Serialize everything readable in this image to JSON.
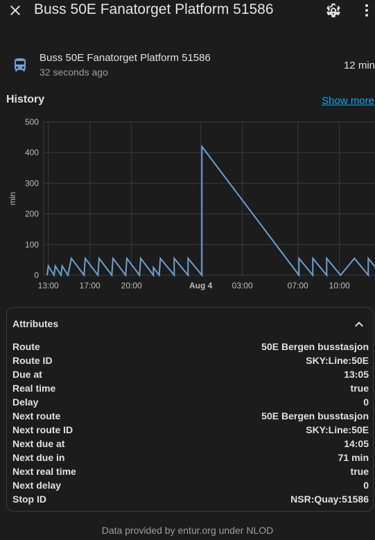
{
  "header": {
    "title": "Buss 50E Fanatorget Platform 51586"
  },
  "entity": {
    "name": "Buss 50E Fanatorget Platform 51586",
    "last_changed": "32 seconds ago",
    "state": "12 min"
  },
  "history": {
    "title": "History",
    "show_more": "Show more"
  },
  "chart_data": {
    "type": "line",
    "title": "",
    "xlabel": "",
    "ylabel": "min",
    "ylim": [
      0,
      500
    ],
    "y_ticks": [
      "0",
      "100",
      "200",
      "300",
      "400",
      "500"
    ],
    "x_ticks": [
      "13:00",
      "17:00",
      "20:00",
      "Aug 4",
      "03:00",
      "07:00",
      "10:00"
    ],
    "grid": true,
    "line_color": "#6e9fd0",
    "series": [
      {
        "points": [
          [
            "12:55",
            0
          ],
          [
            "13:00",
            30
          ],
          [
            "13:25",
            0
          ],
          [
            "13:30",
            30
          ],
          [
            "13:55",
            0
          ],
          [
            "14:00",
            30
          ],
          [
            "14:25",
            0
          ],
          [
            "14:40",
            55
          ],
          [
            "15:35",
            0
          ],
          [
            "15:40",
            55
          ],
          [
            "16:35",
            0
          ],
          [
            "16:40",
            55
          ],
          [
            "17:35",
            0
          ],
          [
            "17:40",
            55
          ],
          [
            "18:35",
            0
          ],
          [
            "18:40",
            55
          ],
          [
            "19:35",
            0
          ],
          [
            "19:40",
            55
          ],
          [
            "20:35",
            0
          ],
          [
            "20:35",
            25
          ],
          [
            "21:00",
            0
          ],
          [
            "21:05",
            55
          ],
          [
            "22:05",
            0
          ],
          [
            "22:05",
            55
          ],
          [
            "23:05",
            0
          ],
          [
            "23:05",
            55
          ],
          [
            "00:05",
            0
          ],
          [
            "00:05",
            420
          ],
          [
            "07:05",
            0
          ],
          [
            "07:05",
            55
          ],
          [
            "08:05",
            0
          ],
          [
            "08:05",
            55
          ],
          [
            "09:05",
            0
          ],
          [
            "09:05",
            55
          ],
          [
            "10:05",
            0
          ],
          [
            "11:05",
            55
          ],
          [
            "12:05",
            0
          ],
          [
            "12:05",
            55
          ],
          [
            "12:50",
            12
          ]
        ]
      }
    ]
  },
  "attributes": {
    "title": "Attributes",
    "rows": [
      {
        "key": "Route",
        "value": "50E Bergen busstasjon"
      },
      {
        "key": "Route ID",
        "value": "SKY:Line:50E"
      },
      {
        "key": "Due at",
        "value": "13:05"
      },
      {
        "key": "Real time",
        "value": "true"
      },
      {
        "key": "Delay",
        "value": "0"
      },
      {
        "key": "Next route",
        "value": "50E Bergen busstasjon"
      },
      {
        "key": "Next route ID",
        "value": "SKY:Line:50E"
      },
      {
        "key": "Next due at",
        "value": "14:05"
      },
      {
        "key": "Next due in",
        "value": "71 min"
      },
      {
        "key": "Next real time",
        "value": "true"
      },
      {
        "key": "Next delay",
        "value": "0"
      },
      {
        "key": "Stop ID",
        "value": "NSR:Quay:51586"
      }
    ]
  },
  "footer": {
    "text": "Data provided by entur.org under NLOD"
  },
  "icons": {
    "close": "close-icon",
    "settings": "gear-icon",
    "more": "dots-vertical-icon",
    "entity": "bus-icon",
    "collapse": "chevron-up-icon"
  }
}
